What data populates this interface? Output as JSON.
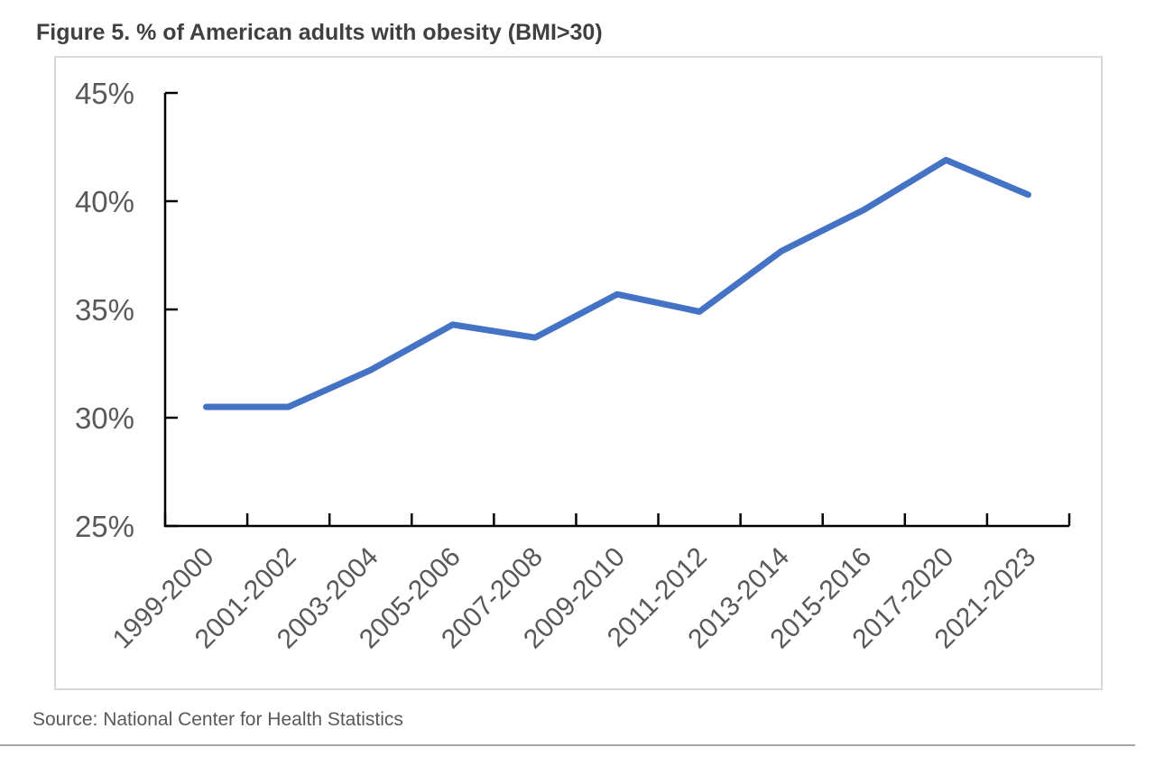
{
  "page": {
    "title": "Figure 5. % of American adults with obesity (BMI>30)",
    "source_note": "Source: National Center for Health Statistics"
  },
  "colors": {
    "line": "#4472C4",
    "title_text": "#404040",
    "axis_text": "#595959",
    "axis_line": "#000000",
    "frame_border": "#D9D9D9",
    "divider": "#A6A6A6"
  },
  "chart_data": {
    "type": "line",
    "title": "Figure 5. % of American adults with obesity (BMI>30)",
    "categories": [
      "1999-2000",
      "2001-2002",
      "2003-2004",
      "2005-2006",
      "2007-2008",
      "2009-2010",
      "2011-2012",
      "2013-2014",
      "2015-2016",
      "2017-2020",
      "2021-2023"
    ],
    "values": [
      30.5,
      30.5,
      32.2,
      34.3,
      33.7,
      35.7,
      34.9,
      37.7,
      39.6,
      41.9,
      40.3
    ],
    "xlabel": "",
    "ylabel": "",
    "ylim": [
      25,
      45
    ],
    "y_ticks": [
      45,
      40,
      35,
      30,
      25
    ],
    "y_tick_suffix": "%",
    "grid": false,
    "legend": "none",
    "x_label_rotation_deg": -45,
    "source": "Source: National Center for Health Statistics"
  }
}
